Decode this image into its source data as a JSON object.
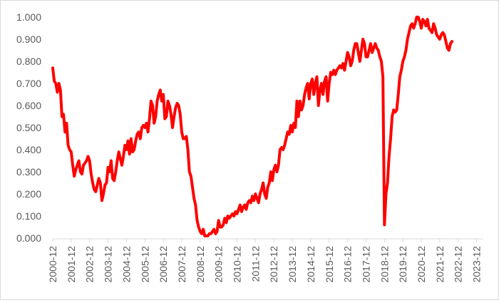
{
  "chart_data": {
    "type": "line",
    "title": "",
    "xlabel": "",
    "ylabel": "",
    "ylim": [
      0,
      1
    ],
    "y_ticks": [
      "0.000",
      "0.100",
      "0.200",
      "0.300",
      "0.400",
      "0.500",
      "0.600",
      "0.700",
      "0.800",
      "0.900",
      "1.000"
    ],
    "x_ticks": [
      "2000-12",
      "2001-12",
      "2002-12",
      "2003-12",
      "2004-12",
      "2005-12",
      "2006-12",
      "2007-12",
      "2008-12",
      "2009-12",
      "2010-12",
      "2011-12",
      "2012-12",
      "2013-12",
      "2014-12",
      "2015-12",
      "2016-12",
      "2017-12",
      "2018-12",
      "2019-12",
      "2020-12",
      "2021-12",
      "2022-12",
      "2023-12"
    ],
    "grid": false,
    "legend": "none",
    "line_color": "#ff0000",
    "x_start": "2000-12",
    "x_step": "1 month",
    "series": [
      {
        "values": [
          0.77,
          0.71,
          0.7,
          0.66,
          0.7,
          0.67,
          0.55,
          0.56,
          0.48,
          0.52,
          0.42,
          0.4,
          0.39,
          0.33,
          0.28,
          0.31,
          0.33,
          0.35,
          0.3,
          0.29,
          0.33,
          0.34,
          0.35,
          0.37,
          0.35,
          0.29,
          0.25,
          0.22,
          0.21,
          0.24,
          0.27,
          0.25,
          0.17,
          0.2,
          0.24,
          0.25,
          0.32,
          0.3,
          0.35,
          0.27,
          0.26,
          0.3,
          0.35,
          0.39,
          0.36,
          0.33,
          0.37,
          0.42,
          0.4,
          0.44,
          0.38,
          0.45,
          0.39,
          0.4,
          0.44,
          0.47,
          0.48,
          0.45,
          0.5,
          0.51,
          0.5,
          0.52,
          0.48,
          0.54,
          0.62,
          0.6,
          0.52,
          0.55,
          0.62,
          0.65,
          0.67,
          0.62,
          0.65,
          0.54,
          0.55,
          0.62,
          0.6,
          0.56,
          0.5,
          0.55,
          0.59,
          0.61,
          0.6,
          0.56,
          0.48,
          0.45,
          0.45,
          0.46,
          0.4,
          0.3,
          0.28,
          0.23,
          0.18,
          0.15,
          0.08,
          0.05,
          0.03,
          0.02,
          0.04,
          0.01,
          0.01,
          0.01,
          0.02,
          0.02,
          0.03,
          0.04,
          0.02,
          0.03,
          0.08,
          0.05,
          0.05,
          0.06,
          0.09,
          0.07,
          0.1,
          0.09,
          0.1,
          0.11,
          0.1,
          0.12,
          0.11,
          0.13,
          0.15,
          0.12,
          0.14,
          0.15,
          0.13,
          0.16,
          0.17,
          0.16,
          0.19,
          0.17,
          0.2,
          0.18,
          0.16,
          0.2,
          0.22,
          0.25,
          0.2,
          0.18,
          0.23,
          0.25,
          0.3,
          0.26,
          0.31,
          0.33,
          0.3,
          0.33,
          0.4,
          0.41,
          0.4,
          0.42,
          0.45,
          0.48,
          0.47,
          0.51,
          0.48,
          0.52,
          0.5,
          0.62,
          0.55,
          0.62,
          0.58,
          0.6,
          0.65,
          0.68,
          0.7,
          0.63,
          0.7,
          0.72,
          0.65,
          0.7,
          0.73,
          0.6,
          0.67,
          0.7,
          0.65,
          0.71,
          0.73,
          0.62,
          0.7,
          0.75,
          0.74,
          0.76,
          0.74,
          0.76,
          0.77,
          0.78,
          0.77,
          0.79,
          0.76,
          0.8,
          0.84,
          0.82,
          0.78,
          0.8,
          0.85,
          0.88,
          0.88,
          0.84,
          0.8,
          0.85,
          0.9,
          0.88,
          0.82,
          0.82,
          0.85,
          0.88,
          0.84,
          0.86,
          0.88,
          0.86,
          0.85,
          0.82,
          0.8,
          0.73,
          0.06,
          0.2,
          0.25,
          0.37,
          0.45,
          0.55,
          0.58,
          0.57,
          0.58,
          0.65,
          0.73,
          0.76,
          0.8,
          0.82,
          0.85,
          0.9,
          0.93,
          0.96,
          0.97,
          0.95,
          0.97,
          1.0,
          1.0,
          0.98,
          0.95,
          0.99,
          0.98,
          0.96,
          0.99,
          0.95,
          0.94,
          0.93,
          0.97,
          0.95,
          0.92,
          0.91,
          0.9,
          0.92,
          0.93,
          0.92,
          0.89,
          0.86,
          0.85,
          0.88,
          0.89
        ]
      }
    ]
  }
}
